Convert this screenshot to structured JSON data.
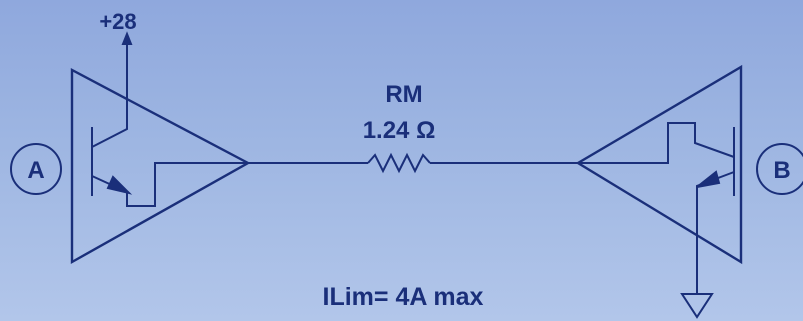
{
  "diagram": {
    "supply_label": "+28",
    "resistor_name": "RM",
    "resistor_value": "1.24 Ω",
    "node_a_label": "A",
    "node_b_label": "B",
    "current_limit_text": "ILim= 4A max",
    "colors": {
      "stroke": "#1a2f7a",
      "background_top": "#8fa8dd",
      "background_bottom": "#b2c6ea"
    }
  }
}
